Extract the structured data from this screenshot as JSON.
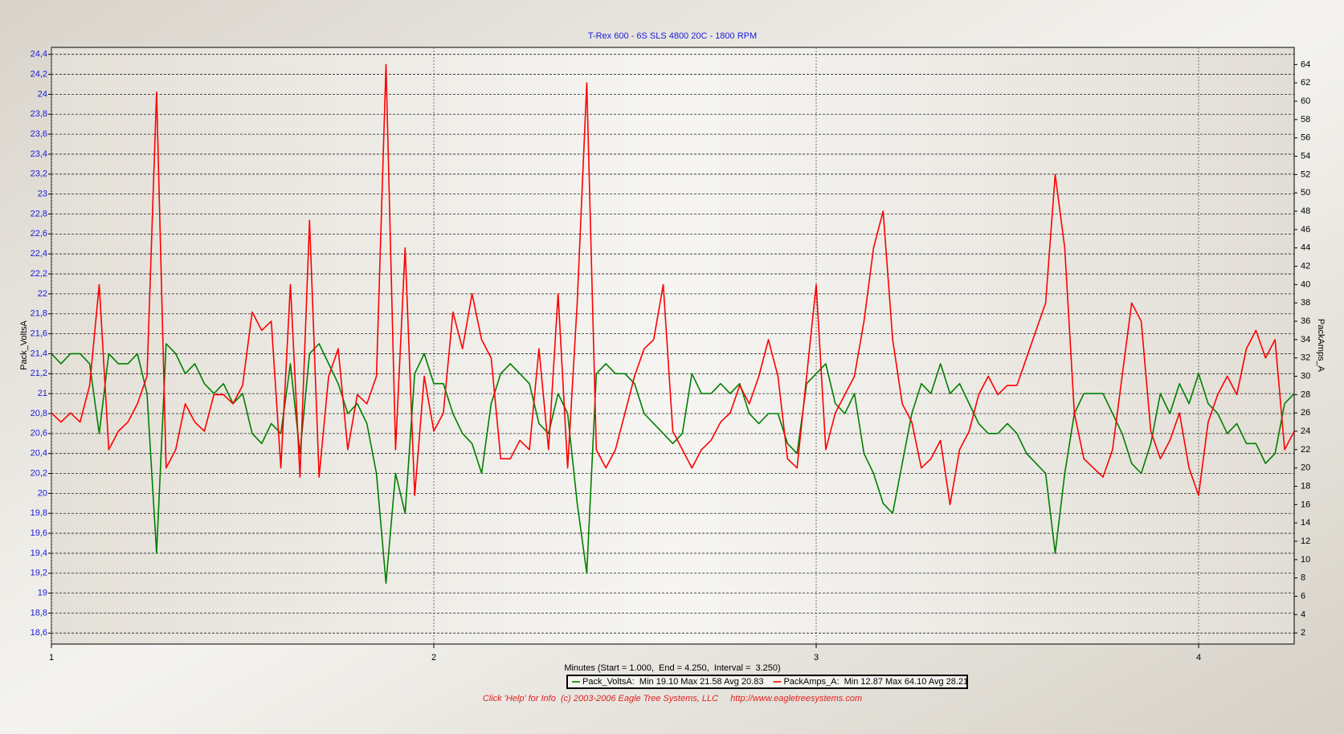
{
  "chart_data": {
    "type": "line",
    "title": "T-Rex 600 - 6S SLS 4800 20C - 1800 RPM",
    "xlabel": "Minutes (Start = 1.000,  End = 4.250,  Interval =  3.250)",
    "ylabel": "Pack_VoltsA",
    "y2label": "PackAmps_A",
    "footer": "Click 'Help' for Info  (c) 2003-2006 Eagle Tree Systems, LLC     http://www.eagletreesystems.com",
    "xlim": [
      1,
      4.25
    ],
    "xticks": [
      1,
      2,
      3,
      4
    ],
    "ylim": [
      18.49,
      24.47
    ],
    "yticks": [
      {
        "value": 18.6,
        "label": "18,6"
      },
      {
        "value": 18.8,
        "label": "18,8"
      },
      19,
      {
        "value": 19.2,
        "label": "19,2"
      },
      {
        "value": 19.4,
        "label": "19,4"
      },
      {
        "value": 19.6,
        "label": "19,6"
      },
      {
        "value": 19.8,
        "label": "19,8"
      },
      20,
      {
        "value": 20.2,
        "label": "20,2"
      },
      {
        "value": 20.4,
        "label": "20,4"
      },
      {
        "value": 20.6,
        "label": "20,6"
      },
      {
        "value": 20.8,
        "label": "20,8"
      },
      21,
      {
        "value": 21.2,
        "label": "21,2"
      },
      {
        "value": 21.4,
        "label": "21,4"
      },
      {
        "value": 21.6,
        "label": "21,6"
      },
      {
        "value": 21.8,
        "label": "21,8"
      },
      22,
      {
        "value": 22.2,
        "label": "22,2"
      },
      {
        "value": 22.4,
        "label": "22,4"
      },
      {
        "value": 22.6,
        "label": "22,6"
      },
      {
        "value": 22.8,
        "label": "22,8"
      },
      23,
      {
        "value": 23.2,
        "label": "23,2"
      },
      {
        "value": 23.4,
        "label": "23,4"
      },
      {
        "value": 23.6,
        "label": "23,6"
      },
      {
        "value": 23.8,
        "label": "23,8"
      },
      24,
      {
        "value": 24.2,
        "label": "24,2"
      },
      {
        "value": 24.4,
        "label": "24,4"
      }
    ],
    "y2lim": [
      0.79,
      65.87
    ],
    "y2ticks": [
      2,
      4,
      6,
      8,
      10,
      12,
      14,
      16,
      18,
      20,
      22,
      24,
      26,
      28,
      30,
      32,
      34,
      36,
      38,
      40,
      42,
      44,
      46,
      48,
      50,
      52,
      54,
      56,
      58,
      60,
      62,
      64
    ],
    "grid": true,
    "x": [
      1.0,
      1.025,
      1.05,
      1.075,
      1.1,
      1.125,
      1.15,
      1.175,
      1.2,
      1.225,
      1.25,
      1.275,
      1.3,
      1.325,
      1.35,
      1.375,
      1.4,
      1.425,
      1.45,
      1.475,
      1.5,
      1.525,
      1.55,
      1.575,
      1.6,
      1.625,
      1.65,
      1.675,
      1.7,
      1.725,
      1.75,
      1.775,
      1.8,
      1.825,
      1.85,
      1.875,
      1.9,
      1.925,
      1.95,
      1.975,
      2.0,
      2.025,
      2.05,
      2.075,
      2.1,
      2.125,
      2.15,
      2.175,
      2.2,
      2.225,
      2.25,
      2.275,
      2.3,
      2.325,
      2.35,
      2.375,
      2.4,
      2.425,
      2.45,
      2.475,
      2.5,
      2.525,
      2.55,
      2.575,
      2.6,
      2.625,
      2.65,
      2.675,
      2.7,
      2.725,
      2.75,
      2.775,
      2.8,
      2.825,
      2.85,
      2.875,
      2.9,
      2.925,
      2.95,
      2.975,
      3.0,
      3.025,
      3.05,
      3.075,
      3.1,
      3.125,
      3.15,
      3.175,
      3.2,
      3.225,
      3.25,
      3.275,
      3.3,
      3.325,
      3.35,
      3.375,
      3.4,
      3.425,
      3.45,
      3.475,
      3.5,
      3.525,
      3.55,
      3.575,
      3.6,
      3.625,
      3.65,
      3.675,
      3.7,
      3.725,
      3.75,
      3.775,
      3.8,
      3.825,
      3.85,
      3.875,
      3.9,
      3.925,
      3.95,
      3.975,
      4.0,
      4.025,
      4.05,
      4.075,
      4.1,
      4.125,
      4.15,
      4.175,
      4.2,
      4.225,
      4.25
    ],
    "series": [
      {
        "name": "Pack_VoltsA:  Min 19.10 Max 21.58 Avg 20.83",
        "color": "#008000",
        "axis": "y",
        "values": [
          21.4,
          21.3,
          21.4,
          21.4,
          21.3,
          20.6,
          21.4,
          21.3,
          21.3,
          21.4,
          21.0,
          19.4,
          21.5,
          21.4,
          21.2,
          21.3,
          21.1,
          21.0,
          21.1,
          20.9,
          21.0,
          20.6,
          20.5,
          20.7,
          20.6,
          21.3,
          20.4,
          21.4,
          21.5,
          21.3,
          21.1,
          20.8,
          20.9,
          20.7,
          20.2,
          19.1,
          20.2,
          19.8,
          21.2,
          21.4,
          21.1,
          21.1,
          20.8,
          20.6,
          20.5,
          20.2,
          20.9,
          21.2,
          21.3,
          21.2,
          21.1,
          20.7,
          20.6,
          21.0,
          20.8,
          19.9,
          19.2,
          21.2,
          21.3,
          21.2,
          21.2,
          21.1,
          20.8,
          20.7,
          20.6,
          20.5,
          20.6,
          21.2,
          21.0,
          21.0,
          21.1,
          21.0,
          21.1,
          20.8,
          20.7,
          20.8,
          20.8,
          20.5,
          20.4,
          21.1,
          21.2,
          21.3,
          20.9,
          20.8,
          21.0,
          20.4,
          20.2,
          19.9,
          19.8,
          20.3,
          20.8,
          21.1,
          21.0,
          21.3,
          21.0,
          21.1,
          20.9,
          20.7,
          20.6,
          20.6,
          20.7,
          20.6,
          20.4,
          20.3,
          20.2,
          19.4,
          20.2,
          20.8,
          21.0,
          21.0,
          21.0,
          20.8,
          20.6,
          20.3,
          20.2,
          20.5,
          21.0,
          20.8,
          21.1,
          20.9,
          21.2,
          20.9,
          20.8,
          20.6,
          20.7,
          20.5,
          20.5,
          20.3,
          20.4,
          20.9,
          21.0
        ]
      },
      {
        "name": "PackAmps_A:  Min 12.87 Max 64.10 Avg 28.21",
        "color": "#ff0000",
        "axis": "y2",
        "values": [
          26,
          25,
          26,
          25,
          29,
          40,
          22,
          24,
          25,
          27,
          30,
          61,
          20,
          22,
          27,
          25,
          24,
          28,
          28,
          27,
          29,
          37,
          35,
          36,
          20,
          40,
          19,
          47,
          19,
          30,
          33,
          22,
          28,
          27,
          30,
          64,
          22,
          44,
          17,
          30,
          24,
          26,
          37,
          33,
          39,
          34,
          32,
          21,
          21,
          23,
          22,
          33,
          22,
          39,
          20,
          38,
          62,
          22,
          20,
          22,
          26,
          30,
          33,
          34,
          40,
          24,
          22,
          20,
          22,
          23,
          25,
          26,
          29,
          27,
          30,
          34,
          30,
          21,
          20,
          30,
          40,
          22,
          26,
          28,
          30,
          36,
          44,
          48,
          34,
          27,
          25,
          20,
          21,
          23,
          16,
          22,
          24,
          28,
          30,
          28,
          29,
          29,
          32,
          35,
          38,
          52,
          44,
          26,
          21,
          20,
          19,
          22,
          30,
          38,
          36,
          24,
          21,
          23,
          26,
          20,
          17,
          25,
          28,
          30,
          28,
          33,
          35,
          32,
          34,
          22,
          24
        ]
      }
    ]
  }
}
